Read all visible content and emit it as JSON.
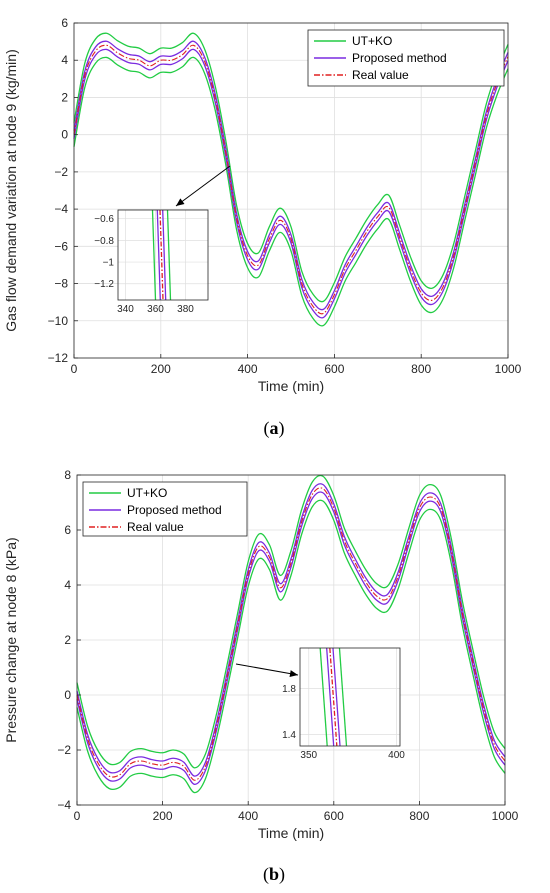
{
  "chart_data": [
    {
      "type": "line",
      "panel_label": "(a)",
      "panel_letter": "a",
      "xlabel": "Time (min)",
      "ylabel": "Gas flow demand variation at node 9 (kg/min)",
      "xlim": [
        0,
        1000
      ],
      "ylim": [
        -12,
        6
      ],
      "xticks": [
        0,
        200,
        400,
        600,
        800,
        1000
      ],
      "yticks": [
        -12,
        -10,
        -8,
        -6,
        -4,
        -2,
        0,
        2,
        4,
        6
      ],
      "grid": true,
      "legend_position": "top-right",
      "series": [
        {
          "name": "UT+KO",
          "color": "#22cc44",
          "style": "band",
          "band_offsets": [
            -0.65,
            0.65
          ]
        },
        {
          "name": "Proposed method",
          "color": "#7a2be0",
          "style": "band",
          "band_offsets": [
            -0.22,
            0.22
          ]
        },
        {
          "name": "Real value",
          "color": "#e02020",
          "style": "dash-dot",
          "band_offsets": [
            0
          ]
        }
      ],
      "real_value": {
        "x": [
          0,
          25,
          50,
          75,
          100,
          125,
          150,
          175,
          200,
          225,
          250,
          275,
          300,
          325,
          350,
          375,
          400,
          425,
          450,
          475,
          500,
          525,
          550,
          575,
          600,
          625,
          650,
          675,
          700,
          725,
          750,
          775,
          800,
          825,
          850,
          875,
          900,
          925,
          950,
          975,
          1000
        ],
        "y": [
          0.0,
          3.2,
          4.5,
          4.8,
          4.4,
          4.1,
          4.0,
          3.7,
          4.0,
          4.0,
          4.3,
          4.8,
          4.0,
          2.0,
          -1.0,
          -4.5,
          -6.5,
          -7.0,
          -5.6,
          -4.6,
          -5.6,
          -8.0,
          -9.2,
          -9.6,
          -8.6,
          -7.2,
          -6.2,
          -5.2,
          -4.4,
          -3.9,
          -5.5,
          -7.2,
          -8.5,
          -8.9,
          -8.2,
          -6.5,
          -4.0,
          -1.5,
          1.0,
          2.8,
          4.2
        ]
      },
      "inset": {
        "xlim": [
          335,
          395
        ],
        "ylim": [
          -1.35,
          -0.52
        ],
        "xticks": [
          340,
          360,
          380
        ],
        "yticks": [
          -0.6,
          -0.8,
          -1,
          -1.2
        ],
        "crossing_x": [
          363.0,
          365.0
        ],
        "line_offsets_x": [
          -5.0,
          -1.8,
          0,
          1.8,
          5.0
        ]
      }
    },
    {
      "type": "line",
      "panel_label": "(b)",
      "panel_letter": "b",
      "xlabel": "Time (min)",
      "ylabel": "Pressure change at node 8 (kPa)",
      "xlim": [
        0,
        1000
      ],
      "ylim": [
        -4,
        8
      ],
      "xticks": [
        0,
        200,
        400,
        600,
        800,
        1000
      ],
      "yticks": [
        -4,
        -2,
        0,
        2,
        4,
        6,
        8
      ],
      "grid": true,
      "legend_position": "top-left",
      "series": [
        {
          "name": "UT+KO",
          "color": "#22cc44",
          "style": "band",
          "band_offsets": [
            -0.45,
            0.45
          ]
        },
        {
          "name": "Proposed method",
          "color": "#7a2be0",
          "style": "band",
          "band_offsets": [
            -0.15,
            0.15
          ]
        },
        {
          "name": "Real value",
          "color": "#e02020",
          "style": "dash-dot",
          "band_offsets": [
            0
          ]
        }
      ],
      "real_value": {
        "x": [
          0,
          25,
          50,
          75,
          100,
          125,
          150,
          175,
          200,
          225,
          250,
          275,
          300,
          325,
          350,
          375,
          400,
          425,
          450,
          475,
          500,
          525,
          550,
          575,
          600,
          625,
          650,
          675,
          700,
          725,
          750,
          775,
          800,
          825,
          850,
          875,
          900,
          925,
          950,
          975,
          1000
        ],
        "y": [
          0.0,
          -1.6,
          -2.5,
          -2.95,
          -2.9,
          -2.5,
          -2.4,
          -2.5,
          -2.55,
          -2.45,
          -2.6,
          -3.1,
          -2.6,
          -1.2,
          0.6,
          2.5,
          4.4,
          5.4,
          5.0,
          3.9,
          4.8,
          6.3,
          7.3,
          7.5,
          6.8,
          5.6,
          4.8,
          4.1,
          3.6,
          3.5,
          4.3,
          5.6,
          6.8,
          7.2,
          6.8,
          5.2,
          3.0,
          1.2,
          -0.5,
          -1.8,
          -2.4
        ]
      },
      "inset": {
        "xlim": [
          345,
          402
        ],
        "ylim": [
          1.3,
          2.15
        ],
        "xticks": [
          350,
          400
        ],
        "yticks": [
          1.8,
          1.4
        ],
        "crossing_x": [
          362.0,
          366.0
        ],
        "line_offsets_x": [
          -5.5,
          -1.8,
          0,
          1.8,
          5.5
        ]
      }
    }
  ]
}
